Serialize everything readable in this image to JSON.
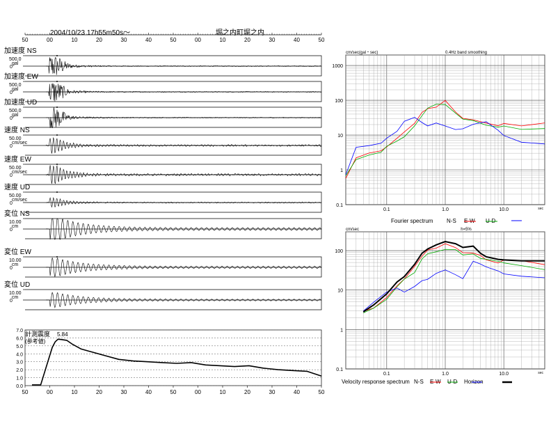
{
  "header": {
    "datetime": "2004/10/23  17h55m50s～",
    "station": "堀之内町堀之内",
    "time_ticks": [
      "50",
      "00",
      "10",
      "20",
      "30",
      "40",
      "50",
      "00",
      "10",
      "20",
      "30",
      "40",
      "50"
    ]
  },
  "traces": [
    {
      "title": "加速度 NS",
      "scale": "500.0",
      "unit": "gal",
      "zero": "0",
      "kind": "acc",
      "amp": 1.0,
      "marker": true
    },
    {
      "title": "加速度 EW",
      "scale": "500.0",
      "unit": "gal",
      "zero": "0",
      "kind": "acc",
      "amp": 1.0,
      "marker": true
    },
    {
      "title": "加速度 UD",
      "scale": "500.0",
      "unit": "gal",
      "zero": "0",
      "kind": "acc",
      "amp": 1.0,
      "marker": true
    },
    {
      "title": "速度 NS",
      "scale": "50.00",
      "unit": "cm/sec",
      "zero": "0",
      "kind": "vel",
      "amp": 0.8,
      "marker": true
    },
    {
      "title": "速度 EW",
      "scale": "50.00",
      "unit": "cm/sec",
      "zero": "0",
      "kind": "vel",
      "amp": 1.0,
      "marker": true
    },
    {
      "title": "速度 UD",
      "scale": "50.00",
      "unit": "cm/sec",
      "zero": "0",
      "kind": "vel",
      "amp": 0.5,
      "marker": true
    },
    {
      "title": "変位 NS",
      "scale": "10.00",
      "unit": "cm",
      "zero": "0",
      "kind": "dis",
      "amp": 1.3,
      "marker": false
    },
    {
      "title": "変位 EW",
      "scale": "10.00",
      "unit": "cm",
      "zero": "0",
      "kind": "dis",
      "amp": 1.0,
      "marker": true
    },
    {
      "title": "変位 UD",
      "scale": "10.00",
      "unit": "cm",
      "zero": "0",
      "kind": "dis",
      "amp": 0.8,
      "marker": false
    }
  ],
  "intensity": {
    "label_line1": "計測震度",
    "label_line2": "(参考値)",
    "max_label": "5.84",
    "y_ticks": [
      "7.0",
      "6.0",
      "5.0",
      "4.0",
      "3.0",
      "2.0",
      "1.0",
      "0.0"
    ],
    "x_ticks": [
      "50",
      "00",
      "10",
      "20",
      "30",
      "40",
      "50",
      "00",
      "10",
      "20",
      "30",
      "40",
      "50"
    ]
  },
  "fourier": {
    "y_unit": "cm/sec(gal・sec)",
    "note": "0.4Hz band smoothing",
    "y_ticks": [
      "1000",
      "100",
      "10",
      "1",
      "0.1"
    ],
    "x_ticks": [
      "0.1",
      "1.0",
      "10.0"
    ],
    "x_unit": "sec",
    "legend_title": "Fourier spectrum",
    "legend": [
      "N-S",
      "E-W",
      "U-D"
    ],
    "colors": {
      "ns": "#ff0000",
      "ew": "#00aa00",
      "ud": "#0000ff"
    }
  },
  "response": {
    "y_unit": "cm/sec",
    "note": "h=5%",
    "y_ticks": [
      "100",
      "10",
      "1",
      "0.1"
    ],
    "x_ticks": [
      "0.1",
      "1.0",
      "10.0"
    ],
    "x_unit": "sec",
    "legend_title": "Velocity response spectrum",
    "legend": [
      "N-S",
      "E-W",
      "U-D",
      "Horizon"
    ],
    "colors": {
      "ns": "#ff0000",
      "ew": "#00aa00",
      "ud": "#0000ff",
      "horizon": "#000000"
    }
  },
  "chart_data": [
    {
      "type": "line",
      "title": "計測震度",
      "subtitle": "(参考値)",
      "ylim": [
        0,
        7
      ],
      "x_tick_labels": [
        "50",
        "00",
        "10",
        "20",
        "30",
        "40",
        "50",
        "00",
        "10",
        "20",
        "30",
        "40",
        "50"
      ],
      "annotations": [
        "5.84"
      ],
      "series": [
        {
          "x": [
            0,
            3,
            7,
            8,
            9,
            10,
            12,
            14,
            17,
            20,
            25,
            30,
            35,
            40,
            45,
            50,
            55,
            60,
            65,
            70,
            75,
            80,
            85,
            90,
            95,
            100
          ],
          "values": [
            0.1,
            0.1,
            4.8,
            5.5,
            5.84,
            5.8,
            5.7,
            5.2,
            4.6,
            4.3,
            3.8,
            3.3,
            3.1,
            3.0,
            2.9,
            2.8,
            2.9,
            2.6,
            2.5,
            2.4,
            2.5,
            2.2,
            2.0,
            1.9,
            1.8,
            1.2
          ]
        }
      ]
    },
    {
      "type": "line",
      "title": "Fourier spectrum",
      "subtitle": "0.4Hz band smoothing",
      "ylabel": "cm/sec(gal・sec)",
      "xlabel": "sec",
      "xscale": "log",
      "yscale": "log",
      "xlim": [
        0.02,
        50
      ],
      "ylim": [
        0.1,
        2000
      ],
      "grid": true,
      "x": [
        0.02,
        0.03,
        0.05,
        0.08,
        0.1,
        0.15,
        0.2,
        0.3,
        0.4,
        0.5,
        0.7,
        1.0,
        1.5,
        2,
        3,
        5,
        8,
        10,
        20,
        50
      ],
      "series": [
        {
          "name": "N-S",
          "values": [
            0.6,
            2.0,
            3.0,
            4.0,
            5.0,
            8.0,
            12,
            20,
            40,
            60,
            70,
            90,
            50,
            30,
            25,
            22,
            20,
            20,
            20,
            20
          ]
        },
        {
          "name": "E-W",
          "values": [
            0.7,
            1.8,
            2.8,
            3.5,
            4.5,
            7.0,
            10,
            18,
            35,
            55,
            85,
            80,
            45,
            28,
            24,
            20,
            18,
            17,
            16,
            15
          ]
        },
        {
          "name": "U-D",
          "values": [
            0.8,
            4.0,
            5.0,
            6.0,
            8.0,
            14,
            25,
            30,
            25,
            20,
            20,
            18,
            16,
            16,
            22,
            25,
            15,
            10,
            7,
            5
          ]
        }
      ]
    },
    {
      "type": "line",
      "title": "Velocity response spectrum",
      "subtitle": "h=5%",
      "ylabel": "cm/sec",
      "xlabel": "sec",
      "xscale": "log",
      "yscale": "log",
      "xlim": [
        0.02,
        50
      ],
      "ylim": [
        0.1,
        300
      ],
      "grid": true,
      "x": [
        0.04,
        0.06,
        0.1,
        0.15,
        0.2,
        0.3,
        0.4,
        0.5,
        0.7,
        1.0,
        1.5,
        2,
        3,
        4,
        5,
        8,
        10,
        20,
        50
      ],
      "series": [
        {
          "name": "N-S",
          "values": [
            2.8,
            4,
            7,
            14,
            20,
            40,
            70,
            95,
            120,
            150,
            120,
            100,
            90,
            70,
            60,
            55,
            55,
            50,
            45
          ]
        },
        {
          "name": "E-W",
          "values": [
            2.8,
            3.8,
            6,
            12,
            18,
            30,
            55,
            80,
            90,
            110,
            100,
            80,
            75,
            60,
            55,
            50,
            45,
            40,
            35
          ]
        },
        {
          "name": "U-D",
          "values": [
            3,
            5,
            9,
            12,
            10,
            12,
            18,
            20,
            25,
            30,
            22,
            20,
            60,
            50,
            40,
            30,
            25,
            22,
            20
          ]
        },
        {
          "name": "Horizon",
          "values": [
            2.8,
            4.2,
            8,
            16,
            22,
            45,
            85,
            110,
            140,
            170,
            150,
            120,
            130,
            85,
            70,
            60,
            58,
            55,
            55
          ]
        }
      ]
    }
  ]
}
